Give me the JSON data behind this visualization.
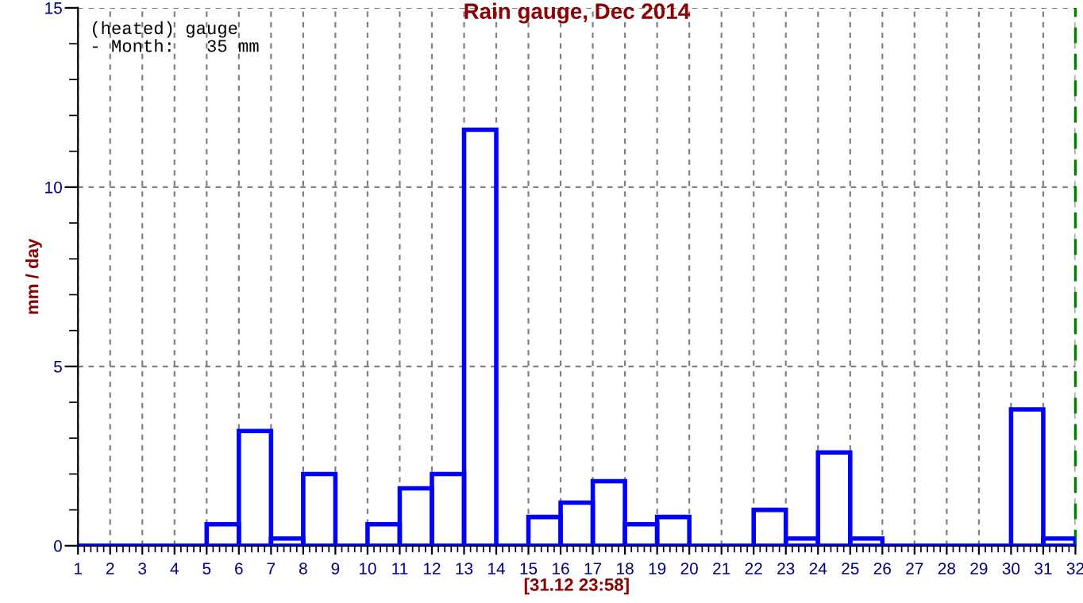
{
  "chart_data": {
    "type": "histogram",
    "title": "Rain gauge, Dec 2014",
    "ylabel": "mm / day",
    "bins": [
      1,
      2,
      3,
      4,
      5,
      6,
      7,
      8,
      9,
      10,
      11,
      12,
      13,
      14,
      15,
      16,
      17,
      18,
      19,
      20,
      21,
      22,
      23,
      24,
      25,
      26,
      27,
      28,
      29,
      30,
      31,
      32
    ],
    "values": [
      0,
      0,
      0,
      0,
      0.6,
      3.2,
      0.2,
      2.0,
      0,
      0.6,
      1.6,
      2.0,
      11.6,
      0,
      0.8,
      1.2,
      1.8,
      0.6,
      0.8,
      0,
      0,
      1.0,
      0.2,
      2.6,
      0.2,
      0,
      0,
      0,
      0,
      3.8,
      0.2
    ],
    "color": "#0000ff",
    "xlim": [
      1,
      32
    ],
    "xticks": [
      1,
      2,
      3,
      4,
      5,
      6,
      7,
      8,
      9,
      10,
      11,
      12,
      13,
      14,
      15,
      16,
      17,
      18,
      19,
      20,
      21,
      22,
      23,
      24,
      25,
      26,
      27,
      28,
      29,
      30,
      31,
      32
    ],
    "ylim": [
      0,
      15
    ],
    "yticks": [
      0,
      5,
      10,
      15
    ],
    "grid": true,
    "ref_lines": [
      {
        "axis": "x",
        "value": 32,
        "color": "#008000",
        "line_style": "dashed"
      }
    ],
    "annotations": [
      "(heated) gauge\n- Month:   35 mm",
      "[31.12 23:58]"
    ]
  }
}
